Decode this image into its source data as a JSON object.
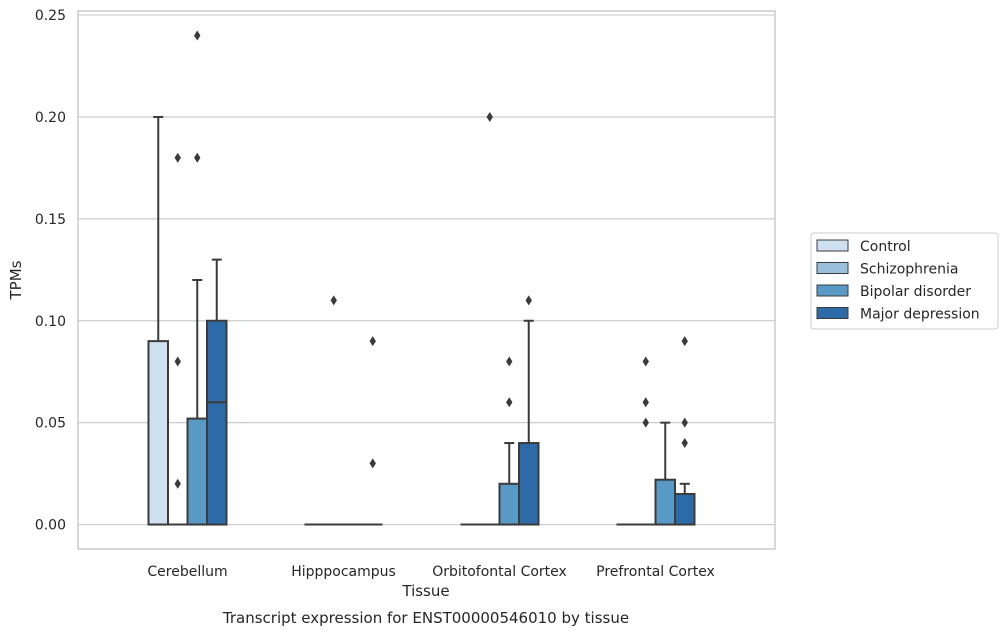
{
  "chart_data": {
    "type": "boxplot",
    "title": "Transcript expression for ENST00000546010 by tissue",
    "xlabel": "Tissue",
    "ylabel": "TPMs",
    "ylim": [
      -0.012,
      0.252
    ],
    "yticks": [
      "0.00",
      "0.05",
      "0.10",
      "0.15",
      "0.20",
      "0.25"
    ],
    "ytick_values": [
      0,
      0.05,
      0.1,
      0.15,
      0.2,
      0.25
    ],
    "grid": true,
    "legend": {
      "placement": "right"
    },
    "categories": [
      "Cerebellum",
      "Hipppocampus",
      "Orbitofontal Cortex",
      "Prefrontal Cortex"
    ],
    "series": [
      {
        "name": "Control",
        "color": "#cfe0f0",
        "boxes": [
          {
            "q1": 0,
            "median": 0,
            "q3": 0.09,
            "whislo": 0,
            "whishi": 0.2,
            "fliers": []
          },
          {
            "q1": 0,
            "median": 0,
            "q3": 0,
            "whislo": 0,
            "whishi": 0,
            "fliers": []
          },
          {
            "q1": 0,
            "median": 0,
            "q3": 0,
            "whislo": 0,
            "whishi": 0,
            "fliers": []
          },
          {
            "q1": 0,
            "median": 0,
            "q3": 0,
            "whislo": 0,
            "whishi": 0,
            "fliers": []
          }
        ]
      },
      {
        "name": "Schizophrenia",
        "color": "#9ac1db",
        "boxes": [
          {
            "q1": 0,
            "median": 0,
            "q3": 0,
            "whislo": 0,
            "whishi": 0,
            "fliers": [
              0.02,
              0.08,
              0.18
            ]
          },
          {
            "q1": 0,
            "median": 0,
            "q3": 0,
            "whislo": 0,
            "whishi": 0,
            "fliers": [
              0.11
            ]
          },
          {
            "q1": 0,
            "median": 0,
            "q3": 0,
            "whislo": 0,
            "whishi": 0,
            "fliers": [
              0.2
            ]
          },
          {
            "q1": 0,
            "median": 0,
            "q3": 0,
            "whislo": 0,
            "whishi": 0,
            "fliers": [
              0.05,
              0.06,
              0.08
            ]
          }
        ]
      },
      {
        "name": "Bipolar disorder",
        "color": "#5899c6",
        "boxes": [
          {
            "q1": 0,
            "median": 0,
            "q3": 0.052,
            "whislo": 0,
            "whishi": 0.12,
            "fliers": [
              0.18,
              0.24
            ]
          },
          {
            "q1": 0,
            "median": 0,
            "q3": 0,
            "whislo": 0,
            "whishi": 0,
            "fliers": []
          },
          {
            "q1": 0,
            "median": 0,
            "q3": 0.02,
            "whislo": 0,
            "whishi": 0.04,
            "fliers": [
              0.06,
              0.08
            ]
          },
          {
            "q1": 0,
            "median": 0,
            "q3": 0.022,
            "whislo": 0,
            "whishi": 0.05,
            "fliers": []
          }
        ]
      },
      {
        "name": "Major depression",
        "color": "#2d6aa8",
        "boxes": [
          {
            "q1": 0,
            "median": 0.06,
            "q3": 0.1,
            "whislo": 0,
            "whishi": 0.13,
            "fliers": []
          },
          {
            "q1": 0,
            "median": 0,
            "q3": 0,
            "whislo": 0,
            "whishi": 0,
            "fliers": [
              0.03,
              0.09
            ]
          },
          {
            "q1": 0,
            "median": 0,
            "q3": 0.04,
            "whislo": 0,
            "whishi": 0.1,
            "fliers": [
              0.11
            ]
          },
          {
            "q1": 0,
            "median": 0,
            "q3": 0.015,
            "whislo": 0,
            "whishi": 0.02,
            "fliers": [
              0.04,
              0.05,
              0.09
            ]
          }
        ]
      }
    ]
  }
}
